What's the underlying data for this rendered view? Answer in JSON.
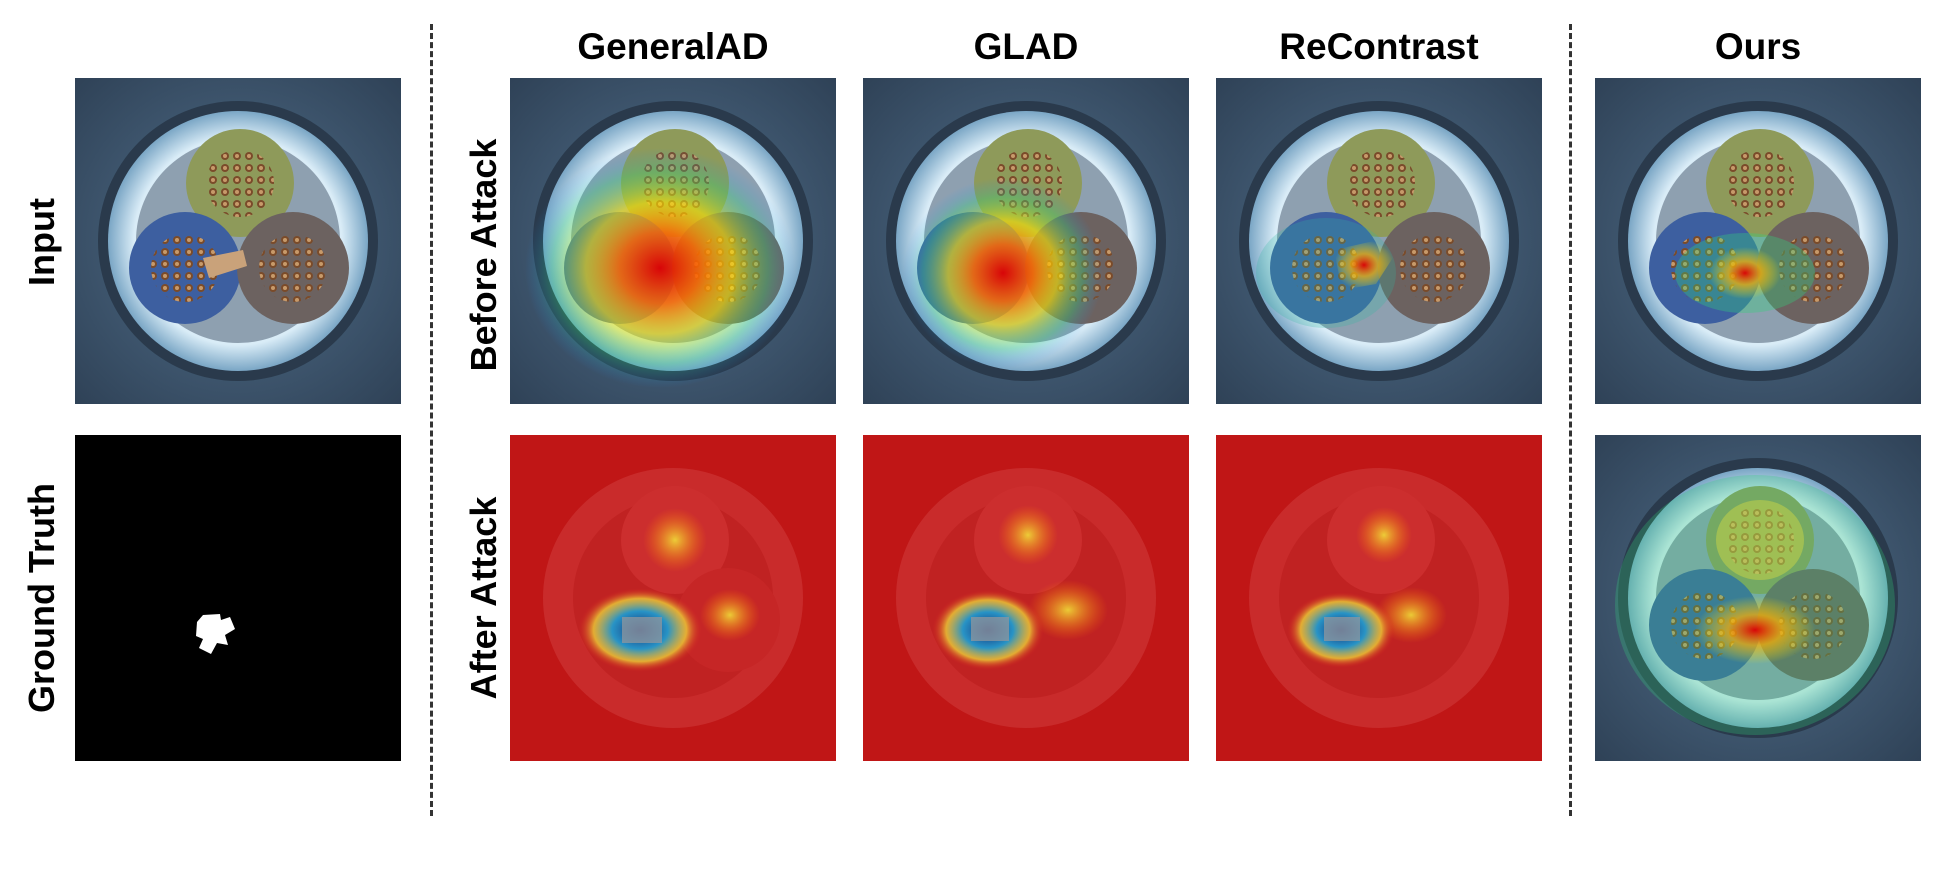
{
  "columns": {
    "generalad": "GeneralAD",
    "glad": "GLAD",
    "recontrast": "ReContrast",
    "ours": "Ours"
  },
  "rows": {
    "input": "Input",
    "ground_truth": "Ground Truth",
    "before_attack": "Before Attack",
    "after_attack": "After Attack"
  },
  "colors": {
    "background_stone": "#3e5670",
    "heat_red": "#d81e1e",
    "ground_truth_bg": "#000000",
    "ground_truth_mask": "#ffffff"
  }
}
